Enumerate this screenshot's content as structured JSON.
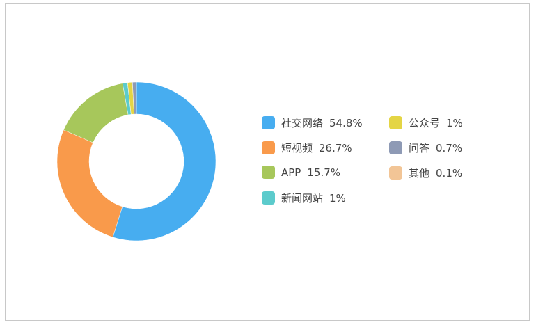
{
  "chart_data": {
    "type": "pie",
    "variant": "donut",
    "title": "",
    "legend_position": "right",
    "slices": [
      {
        "label": "社交网络",
        "value": 54.8,
        "display": "54.8%",
        "color": "#47adf0"
      },
      {
        "label": "短视频",
        "value": 26.7,
        "display": "26.7%",
        "color": "#f99a4b"
      },
      {
        "label": "APP",
        "value": 15.7,
        "display": "15.7%",
        "color": "#a7c75b"
      },
      {
        "label": "新闻网站",
        "value": 1,
        "display": "1%",
        "color": "#5ccbcc"
      },
      {
        "label": "公众号",
        "value": 1,
        "display": "1%",
        "color": "#e4d545"
      },
      {
        "label": "问答",
        "value": 0.7,
        "display": "0.7%",
        "color": "#8e9ab5"
      },
      {
        "label": "其他",
        "value": 0.1,
        "display": "0.1%",
        "color": "#f2c596"
      }
    ]
  }
}
